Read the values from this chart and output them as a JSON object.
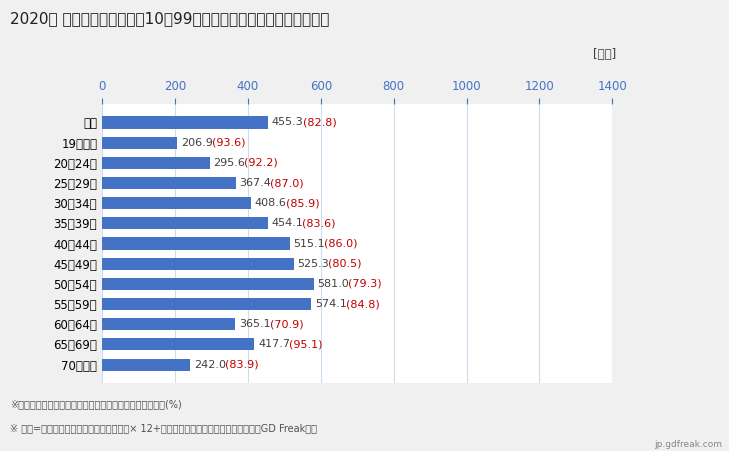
{
  "title": "2020年 民間企業（従業者数10～99人）フルタイム労働者の平均年収",
  "categories": [
    "全体",
    "19歳以下",
    "20～24歳",
    "25～29歳",
    "30～34歳",
    "35～39歳",
    "40～44歳",
    "45～49歳",
    "50～54歳",
    "55～59歳",
    "60～64歳",
    "65～69歳",
    "70歳以上"
  ],
  "values": [
    455.3,
    206.9,
    295.6,
    367.4,
    408.6,
    454.1,
    515.1,
    525.3,
    581.0,
    574.1,
    365.1,
    417.7,
    242.0
  ],
  "ratios": [
    82.8,
    93.6,
    92.2,
    87.0,
    85.9,
    83.6,
    86.0,
    80.5,
    79.3,
    84.8,
    70.9,
    95.1,
    83.9
  ],
  "bar_color": "#4472C4",
  "tick_color": "#4472C4",
  "label_color_value": "#404040",
  "label_color_ratio": "#C00000",
  "unit_label": "[万円]",
  "xlim": [
    0,
    1400
  ],
  "xticks": [
    0,
    200,
    400,
    600,
    800,
    1000,
    1200,
    1400
  ],
  "footnote1": "※（）内は域内の同業種・同年齢層の平均所得に対する比(%)",
  "footnote2": "※ 年収=「きまって支給する現金給与額」× 12+「年間賞与その他特別給与額」としてGD Freak推計",
  "watermark": "jp.gdfreak.com",
  "bg_color": "#F0F0F0",
  "plot_bg_color": "#FFFFFF",
  "title_fontsize": 11,
  "tick_fontsize": 8.5,
  "label_fontsize": 8,
  "footnote_fontsize": 7
}
